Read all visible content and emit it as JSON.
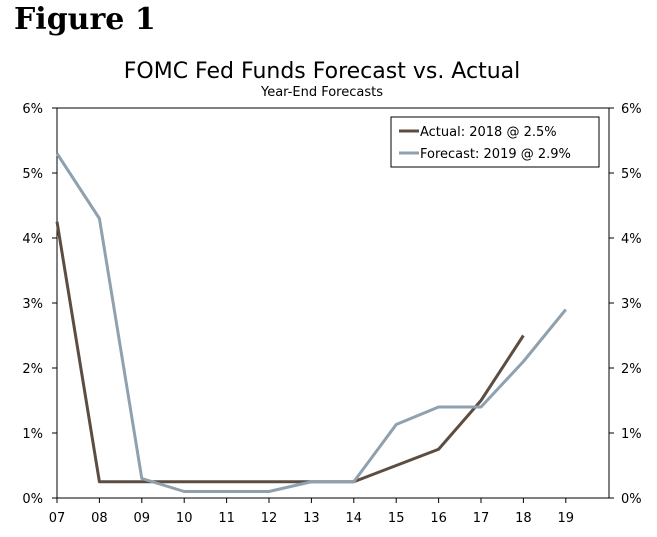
{
  "figure_label": "Figure 1",
  "chart_data": {
    "type": "line",
    "title": "FOMC Fed Funds Forecast vs. Actual",
    "subtitle": "Year-End Forecasts",
    "categories": [
      "07",
      "08",
      "09",
      "10",
      "11",
      "12",
      "13",
      "14",
      "15",
      "16",
      "17",
      "18",
      "19"
    ],
    "ylim": [
      0,
      6
    ],
    "y_ticks": [
      "0%",
      "1%",
      "2%",
      "3%",
      "4%",
      "5%",
      "6%"
    ],
    "series": [
      {
        "name": "Actual: 2018 @ 2.5%",
        "color": "#5b4d42",
        "values": [
          4.25,
          0.25,
          0.25,
          0.25,
          0.25,
          0.25,
          0.25,
          0.25,
          0.5,
          0.75,
          1.5,
          2.5,
          null
        ]
      },
      {
        "name": "Forecast: 2019 @ 2.9%",
        "color": "#8fa1ae",
        "values": [
          5.3,
          4.3,
          0.3,
          0.1,
          0.1,
          0.1,
          0.25,
          0.25,
          1.13,
          1.4,
          1.4,
          2.1,
          2.9
        ]
      }
    ],
    "legend_position": "top-right"
  }
}
